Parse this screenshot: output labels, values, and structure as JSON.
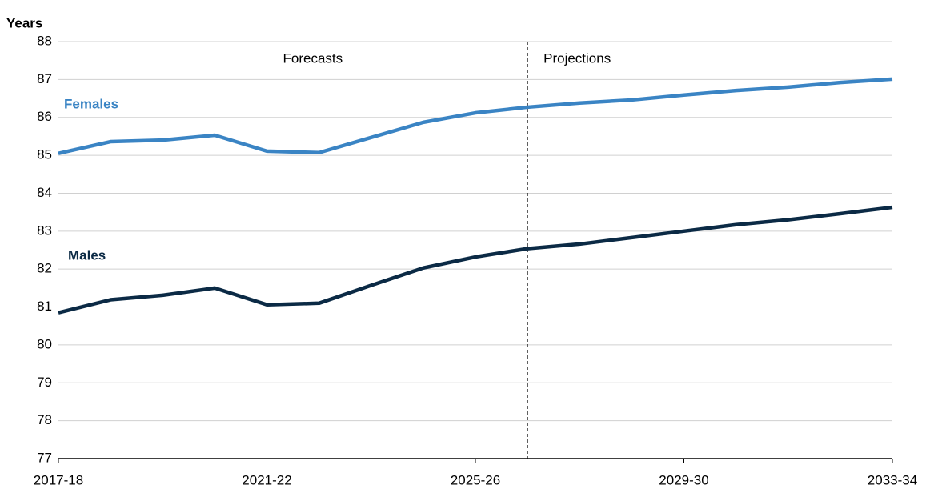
{
  "chart_data": {
    "type": "line",
    "y_label": "Years",
    "categories": [
      "2017-18",
      null,
      null,
      null,
      "2021-22",
      null,
      null,
      null,
      "2025-26",
      null,
      null,
      null,
      "2029-30",
      null,
      null,
      null,
      "2033-34"
    ],
    "series": [
      {
        "name": "Females",
        "color": "#3a84c4",
        "values": [
          85.05,
          85.36,
          85.4,
          85.53,
          85.11,
          85.07,
          85.47,
          85.87,
          86.12,
          86.27,
          86.38,
          86.46,
          86.59,
          86.71,
          86.8,
          86.92,
          87.01
        ]
      },
      {
        "name": "Males",
        "color": "#0b2a45",
        "values": [
          80.85,
          81.19,
          81.31,
          81.5,
          81.06,
          81.1,
          81.57,
          82.03,
          82.32,
          82.54,
          82.66,
          82.83,
          83.0,
          83.17,
          83.3,
          83.46,
          83.63
        ]
      }
    ],
    "annotations": [
      "Forecasts",
      "Projections"
    ],
    "ylim": [
      77,
      88
    ],
    "yticks": [
      77,
      78,
      79,
      80,
      81,
      82,
      83,
      84,
      85,
      86,
      87,
      88
    ],
    "grid": true
  }
}
